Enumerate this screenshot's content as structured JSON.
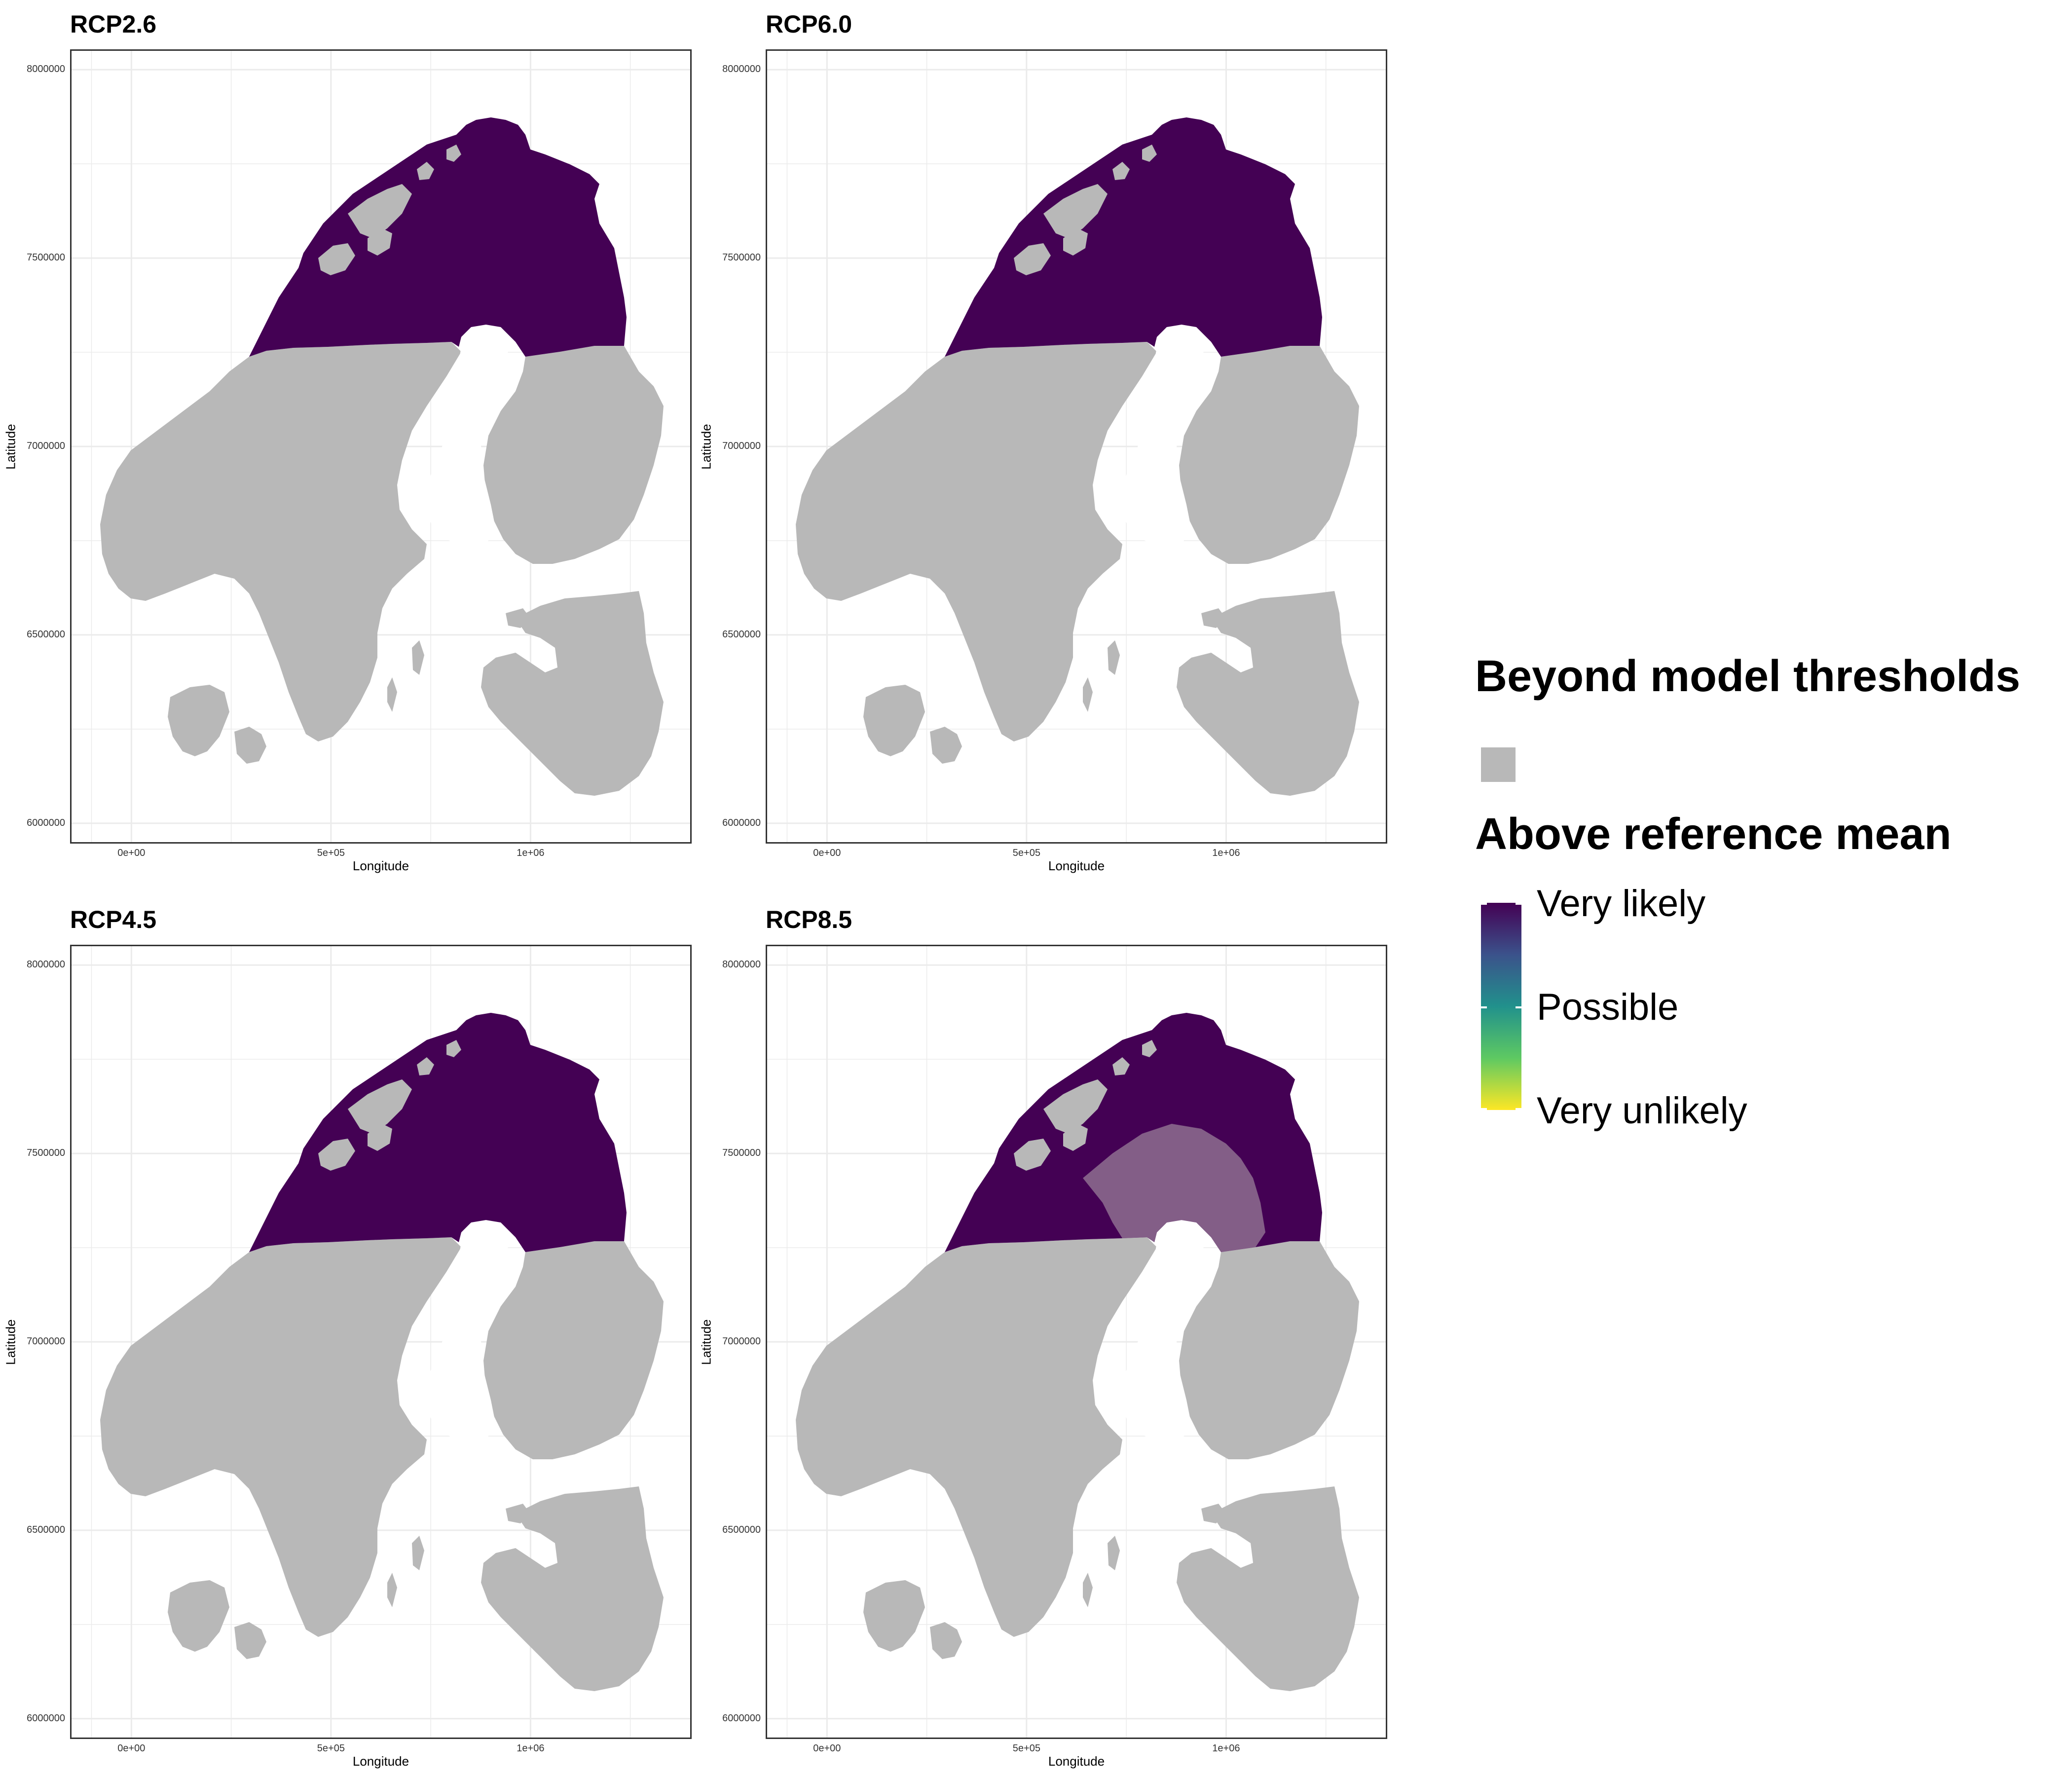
{
  "colors": {
    "beyond_thresholds": "#b8b8b8",
    "very_likely": "#440154",
    "possible": "#21918c",
    "very_unlikely": "#fde725",
    "grid": "#ebebeb",
    "panel_border": "#333333"
  },
  "axes": {
    "xlabel": "Longitude",
    "ylabel": "Latitude",
    "x_ticks": [
      "0e+00",
      "5e+05",
      "1e+06"
    ],
    "y_ticks": [
      "8000000",
      "7500000",
      "7000000",
      "6500000",
      "6000000"
    ]
  },
  "panels": [
    {
      "title": "RCP2.6",
      "uncertain_zone": false
    },
    {
      "title": "RCP6.0",
      "uncertain_zone": false
    },
    {
      "title": "RCP4.5",
      "uncertain_zone": false
    },
    {
      "title": "RCP8.5",
      "uncertain_zone": true
    }
  ],
  "legend": {
    "beyond_title": "Beyond model thresholds",
    "above_title": "Above reference mean",
    "levels": [
      "Very likely",
      "Possible",
      "Very unlikely"
    ]
  },
  "chart_data": {
    "type": "map",
    "facets": [
      "RCP2.6",
      "RCP6.0",
      "RCP4.5",
      "RCP8.5"
    ],
    "xlim": [
      -150000,
      1400000
    ],
    "ylim": [
      5950000,
      8050000
    ],
    "grid": true
  }
}
